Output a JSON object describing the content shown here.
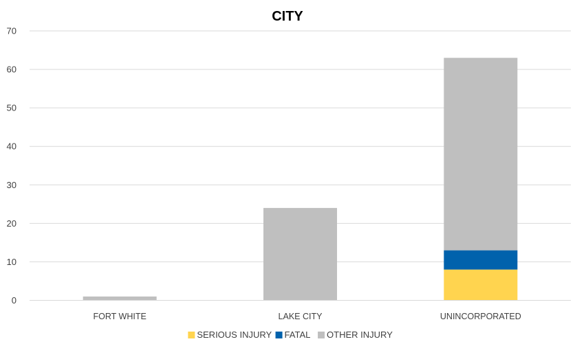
{
  "chart_data": {
    "type": "bar",
    "stacked": true,
    "title": "CITY",
    "xlabel": "",
    "ylabel": "",
    "categories": [
      "FORT WHITE",
      "LAKE CITY",
      "UNINCORPORATED"
    ],
    "series": [
      {
        "name": "SERIOUS INJURY",
        "values": [
          0,
          0,
          8
        ],
        "color": "#FFD44F"
      },
      {
        "name": "FATAL",
        "values": [
          0,
          0,
          5
        ],
        "color": "#0062AC"
      },
      {
        "name": "OTHER INJURY",
        "values": [
          1,
          24,
          50
        ],
        "color": "#BFBFBF"
      }
    ],
    "ylim": [
      0,
      70
    ],
    "yticks": [
      0,
      10,
      20,
      30,
      40,
      50,
      60,
      70
    ],
    "grid": true,
    "gridline_color": "#D9D9D9",
    "legend_position": "bottom"
  }
}
